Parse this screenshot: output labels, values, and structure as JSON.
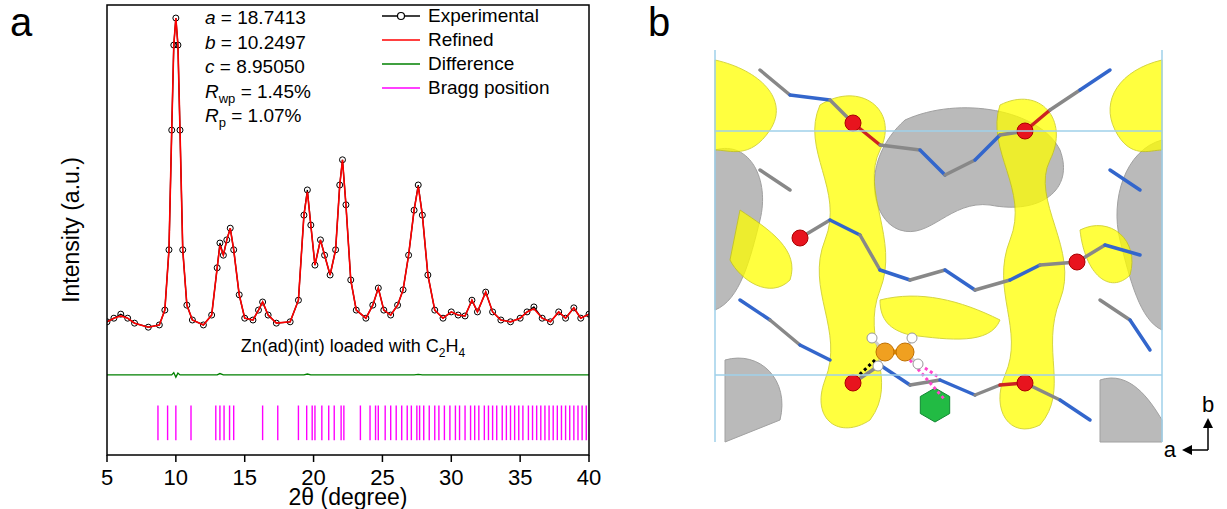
{
  "panel_labels": [
    "a",
    "b"
  ],
  "chart_data": {
    "type": "line",
    "x_label": "2θ (degree)",
    "y_label": "Intensity (a.u.)",
    "xlim": [
      5,
      40
    ],
    "xticks": [
      5,
      10,
      15,
      20,
      25,
      30,
      35,
      40
    ],
    "ylim": [
      0,
      100
    ],
    "yticks": [],
    "tick_labels": "x",
    "legend": "upper right",
    "annotations": [
      {
        "symbol": "a",
        "text": " = 18.7413"
      },
      {
        "symbol": "b",
        "text": " = 10.2497"
      },
      {
        "symbol": "c",
        "text": " = 8.95050"
      },
      {
        "symbol": "R",
        "sub": "wp",
        "text": " = 1.45%"
      },
      {
        "symbol": "R",
        "sub": "p",
        "text": " = 1.07%"
      }
    ],
    "sample_label": [
      {
        "text": "Zn(ad)(int) loaded with C"
      },
      {
        "text": "2",
        "sub": true
      },
      {
        "text": "H"
      },
      {
        "text": "4",
        "sub": true
      }
    ],
    "x": [
      5.0,
      5.5,
      6.0,
      6.5,
      7.0,
      8.0,
      8.8,
      9.2,
      9.5,
      9.7,
      9.85,
      10.0,
      10.15,
      10.3,
      10.5,
      10.8,
      11.2,
      12.0,
      12.6,
      13.0,
      13.2,
      13.45,
      13.7,
      13.95,
      14.2,
      14.6,
      15.0,
      15.6,
      16.0,
      16.3,
      16.7,
      17.3,
      18.3,
      18.9,
      19.3,
      19.55,
      19.8,
      20.1,
      20.5,
      20.8,
      21.2,
      21.6,
      21.9,
      22.1,
      22.35,
      22.7,
      23.1,
      23.8,
      24.3,
      24.7,
      25.1,
      25.6,
      26.1,
      26.5,
      26.9,
      27.3,
      27.6,
      27.9,
      28.3,
      28.8,
      29.4,
      30.0,
      30.5,
      31.0,
      31.5,
      31.9,
      32.5,
      33.0,
      33.6,
      34.3,
      35.0,
      35.5,
      36.0,
      36.6,
      37.2,
      37.8,
      38.3,
      38.9,
      39.4,
      40.0
    ],
    "series": [
      {
        "name": "Experimental",
        "color": "#000000",
        "marker": "circle",
        "line_style": "solid",
        "values": [
          29.6,
          30.4,
          31.3,
          30.4,
          29.3,
          28.4,
          28.9,
          32.2,
          45.6,
          72.2,
          91.1,
          97.1,
          91.1,
          72.2,
          45.6,
          33.3,
          30.0,
          28.9,
          31.1,
          41.6,
          47.1,
          44.4,
          47.8,
          50.4,
          45.6,
          35.6,
          30.4,
          30.0,
          32.2,
          34.0,
          31.1,
          29.3,
          29.6,
          34.4,
          53.3,
          58.9,
          51.1,
          42.2,
          47.8,
          44.4,
          40.0,
          45.6,
          60.0,
          65.6,
          55.6,
          38.9,
          32.2,
          30.4,
          33.3,
          37.1,
          32.2,
          31.1,
          33.3,
          36.7,
          44.4,
          54.4,
          60.0,
          53.3,
          40.0,
          32.2,
          30.4,
          31.8,
          31.1,
          30.9,
          34.4,
          31.8,
          36.2,
          31.8,
          30.0,
          29.6,
          30.4,
          31.8,
          32.9,
          30.4,
          29.6,
          31.8,
          30.4,
          32.7,
          30.4,
          31.3
        ]
      },
      {
        "name": "Refined",
        "color": "#ff0000",
        "line_style": "solid",
        "values": [
          29.6,
          30.4,
          30.9,
          30.4,
          29.3,
          28.4,
          28.9,
          32.2,
          45.6,
          72.2,
          91.1,
          97.1,
          91.1,
          72.2,
          45.6,
          33.3,
          30.0,
          28.9,
          31.1,
          41.6,
          46.6,
          44.4,
          47.8,
          50.4,
          45.6,
          35.6,
          30.4,
          30.0,
          32.2,
          34.0,
          31.1,
          29.3,
          29.6,
          34.4,
          53.3,
          58.5,
          51.1,
          42.2,
          47.8,
          44.4,
          40.0,
          45.6,
          60.0,
          65.6,
          55.6,
          38.9,
          32.2,
          30.4,
          33.3,
          37.1,
          32.2,
          31.1,
          33.3,
          36.7,
          44.4,
          54.4,
          59.7,
          53.3,
          40.0,
          32.2,
          30.4,
          31.8,
          31.1,
          30.9,
          34.4,
          31.8,
          36.2,
          31.8,
          30.0,
          29.6,
          30.4,
          31.8,
          32.5,
          30.4,
          29.6,
          31.8,
          30.4,
          32.7,
          30.4,
          31.3
        ]
      },
      {
        "name": "Difference",
        "color": "#008000",
        "line_style": "solid",
        "values": [
          17.8,
          17.8,
          17.8,
          17.8,
          17.8,
          17.8,
          17.8,
          17.8,
          17.8,
          17.8,
          18.3,
          17.3,
          18.2,
          17.8,
          17.8,
          17.8,
          17.8,
          17.8,
          17.8,
          17.8,
          18.1,
          17.8,
          17.8,
          17.8,
          17.8,
          17.8,
          17.8,
          17.8,
          17.8,
          17.8,
          17.8,
          17.8,
          17.8,
          17.8,
          17.8,
          18.0,
          17.8,
          17.8,
          17.8,
          17.8,
          17.8,
          17.8,
          17.8,
          17.8,
          17.8,
          17.8,
          17.8,
          17.8,
          17.8,
          17.8,
          17.8,
          17.8,
          17.8,
          17.8,
          17.8,
          17.8,
          17.9,
          17.8,
          17.8,
          17.8,
          17.8,
          17.8,
          17.8,
          17.8,
          17.8,
          17.8,
          17.8,
          17.8,
          17.8,
          17.8,
          17.8,
          17.8,
          17.8,
          17.8,
          17.8,
          17.8,
          17.8,
          17.8,
          17.8,
          17.8
        ]
      },
      {
        "name": "Bragg position",
        "color": "#ff00ff",
        "type": "ticks",
        "y_range": [
          3.3,
          11
        ],
        "x": [
          8.7,
          9.4,
          10.0,
          11.1,
          12.9,
          13.2,
          13.5,
          13.9,
          14.2,
          16.3,
          17.4,
          18.9,
          19.5,
          19.9,
          20.1,
          20.6,
          21.1,
          21.5,
          22.0,
          22.2,
          23.4,
          24.1,
          24.5,
          24.7,
          25.2,
          25.6,
          26.0,
          26.4,
          26.8,
          27.1,
          27.5,
          27.7,
          28.0,
          28.4,
          28.8,
          29.1,
          29.5,
          29.9,
          30.3,
          30.6,
          31.0,
          31.4,
          31.7,
          32.0,
          32.4,
          32.7,
          33.0,
          33.3,
          33.7,
          34.0,
          34.3,
          34.6,
          34.9,
          35.2,
          35.6,
          35.9,
          36.2,
          36.5,
          36.8,
          37.1,
          37.4,
          37.7,
          38.0,
          38.3,
          38.6,
          38.9,
          39.2,
          39.5,
          39.8
        ]
      }
    ]
  },
  "structure": {
    "axis_labels": {
      "vertical": "b",
      "horizontal": "a"
    }
  }
}
